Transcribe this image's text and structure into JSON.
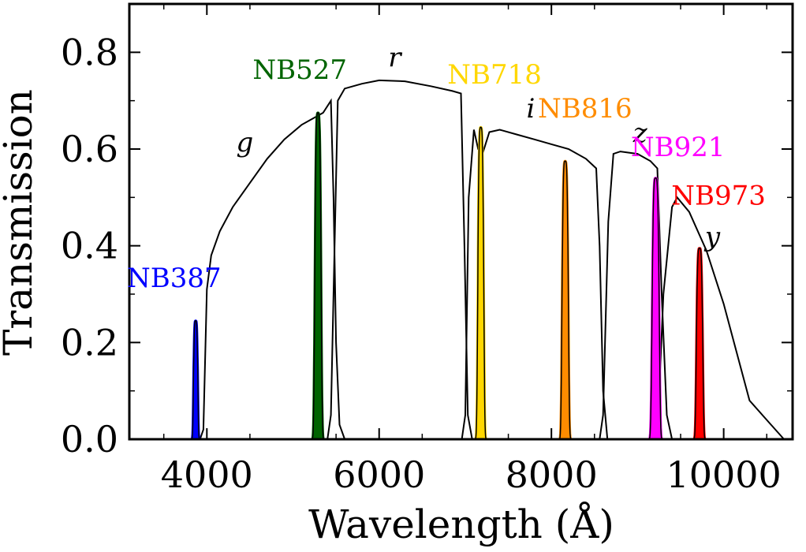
{
  "chart_data": {
    "type": "line",
    "title": "",
    "xlabel": "Wavelength (Å)",
    "ylabel": "Transmission",
    "xlim": [
      3100,
      10800
    ],
    "ylim": [
      0,
      0.9
    ],
    "x_ticks": [
      4000,
      6000,
      8000,
      10000
    ],
    "x_tick_labels": [
      "4000",
      "6000",
      "8000",
      "10000"
    ],
    "y_ticks": [
      0.0,
      0.2,
      0.4,
      0.6,
      0.8
    ],
    "y_tick_labels": [
      "0.0",
      "0.2",
      "0.4",
      "0.6",
      "0.8"
    ],
    "grid": false,
    "broadband": [
      {
        "name": "g",
        "color": "#000000",
        "label_at": [
          4440,
          0.595
        ],
        "points": [
          [
            3920,
            0
          ],
          [
            3960,
            0.02
          ],
          [
            4000,
            0.31
          ],
          [
            4050,
            0.38
          ],
          [
            4150,
            0.43
          ],
          [
            4300,
            0.48
          ],
          [
            4500,
            0.53
          ],
          [
            4700,
            0.58
          ],
          [
            4900,
            0.62
          ],
          [
            5100,
            0.65
          ],
          [
            5250,
            0.665
          ],
          [
            5350,
            0.675
          ],
          [
            5440,
            0.7
          ],
          [
            5470,
            0.5
          ],
          [
            5500,
            0.2
          ],
          [
            5540,
            0.03
          ],
          [
            5600,
            0
          ]
        ]
      },
      {
        "name": "r",
        "color": "#000000",
        "label_at": [
          6180,
          0.77
        ],
        "points": [
          [
            5400,
            0
          ],
          [
            5440,
            0.05
          ],
          [
            5470,
            0.3
          ],
          [
            5520,
            0.7
          ],
          [
            5600,
            0.725
          ],
          [
            5800,
            0.735
          ],
          [
            6000,
            0.742
          ],
          [
            6300,
            0.74
          ],
          [
            6600,
            0.73
          ],
          [
            6850,
            0.72
          ],
          [
            6950,
            0.715
          ],
          [
            6990,
            0.4
          ],
          [
            7030,
            0.05
          ],
          [
            7080,
            0
          ]
        ]
      },
      {
        "name": "i",
        "color": "#000000",
        "label_at": [
          7760,
          0.665
        ],
        "points": [
          [
            6960,
            0
          ],
          [
            7000,
            0.05
          ],
          [
            7040,
            0.5
          ],
          [
            7100,
            0.64
          ],
          [
            7150,
            0.6
          ],
          [
            7200,
            0.59
          ],
          [
            7280,
            0.635
          ],
          [
            7400,
            0.64
          ],
          [
            7600,
            0.63
          ],
          [
            7800,
            0.62
          ],
          [
            8000,
            0.61
          ],
          [
            8200,
            0.6
          ],
          [
            8400,
            0.58
          ],
          [
            8520,
            0.56
          ],
          [
            8560,
            0.4
          ],
          [
            8600,
            0.1
          ],
          [
            8650,
            0
          ]
        ]
      },
      {
        "name": "z",
        "color": "#000000",
        "label_at": [
          9030,
          0.615
        ],
        "points": [
          [
            8560,
            0
          ],
          [
            8600,
            0.05
          ],
          [
            8660,
            0.45
          ],
          [
            8720,
            0.59
          ],
          [
            8800,
            0.595
          ],
          [
            9000,
            0.59
          ],
          [
            9150,
            0.575
          ],
          [
            9230,
            0.56
          ],
          [
            9280,
            0.3
          ],
          [
            9340,
            0.05
          ],
          [
            9400,
            0
          ]
        ]
      },
      {
        "name": "y",
        "color": "#000000",
        "label_at": [
          9870,
          0.4
        ],
        "points": [
          [
            9180,
            0
          ],
          [
            9240,
            0.05
          ],
          [
            9300,
            0.3
          ],
          [
            9400,
            0.48
          ],
          [
            9460,
            0.5
          ],
          [
            9600,
            0.47
          ],
          [
            9800,
            0.39
          ],
          [
            10000,
            0.28
          ],
          [
            10150,
            0.18
          ],
          [
            10300,
            0.08
          ],
          [
            10500,
            0.04
          ],
          [
            10700,
            0
          ]
        ]
      }
    ],
    "narrowband": [
      {
        "name": "NB387",
        "color": "#0000ff",
        "center": 3870,
        "fwhm": 55,
        "peak": 0.245,
        "label_at": [
          3620,
          0.315
        ]
      },
      {
        "name": "NB527",
        "color": "#006400",
        "center": 5290,
        "fwhm": 80,
        "peak": 0.675,
        "label_at": [
          5080,
          0.745
        ]
      },
      {
        "name": "NB718",
        "color": "#ffd700",
        "center": 7180,
        "fwhm": 75,
        "peak": 0.645,
        "label_at": [
          7340,
          0.735
        ]
      },
      {
        "name": "NB816",
        "color": "#ff8c00",
        "center": 8160,
        "fwhm": 80,
        "peak": 0.575,
        "label_at": [
          8390,
          0.665
        ]
      },
      {
        "name": "NB921",
        "color": "#ff00ff",
        "center": 9210,
        "fwhm": 90,
        "peak": 0.54,
        "label_at": [
          9470,
          0.585
        ]
      },
      {
        "name": "NB973",
        "color": "#ff0000",
        "center": 9720,
        "fwhm": 80,
        "peak": 0.395,
        "label_at": [
          9940,
          0.485
        ]
      }
    ]
  }
}
